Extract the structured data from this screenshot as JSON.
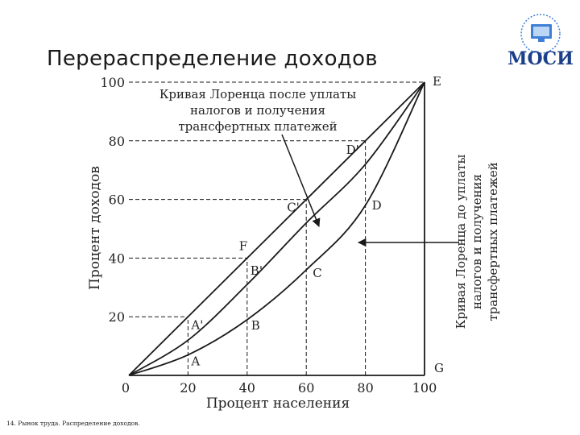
{
  "slide": {
    "title": "Перераспределение доходов",
    "footer": "14. Рынок труда. Распределение доходов.",
    "logo_text": "МОСИ"
  },
  "colors": {
    "line": "#1a1a1a",
    "logo_blue": "#1b3f8a",
    "logo_light": "#3f7fd6"
  },
  "chart_data": {
    "type": "line",
    "title": "",
    "xlabel": "Процент населения",
    "ylabel": "Процент доходов",
    "xlim": [
      0,
      100
    ],
    "ylim": [
      0,
      100
    ],
    "x_ticks": [
      "0",
      "20",
      "40",
      "60",
      "80",
      "100"
    ],
    "y_ticks": [
      "20",
      "40",
      "60",
      "80",
      "100"
    ],
    "grid": false,
    "series": [
      {
        "role": "equality",
        "x": [
          0,
          100
        ],
        "y": [
          0,
          100
        ]
      },
      {
        "role": "after_taxes",
        "x": [
          0,
          20,
          40,
          60,
          80,
          100
        ],
        "y": [
          0,
          12,
          31,
          52,
          72,
          100
        ]
      },
      {
        "role": "before_taxes",
        "x": [
          0,
          20,
          40,
          60,
          80,
          100
        ],
        "y": [
          0,
          7,
          19,
          36,
          58,
          100
        ]
      }
    ],
    "guides": [
      {
        "x": 20,
        "y": 20
      },
      {
        "x": 40,
        "y": 40
      },
      {
        "x": 60,
        "y": 60
      },
      {
        "x": 80,
        "y": 80
      }
    ],
    "points": [
      {
        "label": "E",
        "x": 100,
        "y": 100
      },
      {
        "label": "G",
        "x": 100,
        "y": 0
      },
      {
        "label": "F",
        "x": 40,
        "y": 40
      },
      {
        "label": "A'",
        "x": 20,
        "y": 12
      },
      {
        "label": "A",
        "x": 20,
        "y": 7
      },
      {
        "label": "B'",
        "x": 40,
        "y": 31
      },
      {
        "label": "B",
        "x": 40,
        "y": 19
      },
      {
        "label": "C'",
        "x": 60,
        "y": 52
      },
      {
        "label": "C",
        "x": 60,
        "y": 36
      },
      {
        "label": "D'",
        "x": 80,
        "y": 72
      },
      {
        "label": "D",
        "x": 80,
        "y": 58
      }
    ],
    "annotations": {
      "after_lines": [
        "Кривая Лоренца после уплаты",
        "налогов и получения",
        "трансфертных платежей"
      ],
      "before_lines": [
        "Кривая Лоренца до уплаты",
        "налогов и получения",
        "трансфертных платежей"
      ]
    }
  }
}
